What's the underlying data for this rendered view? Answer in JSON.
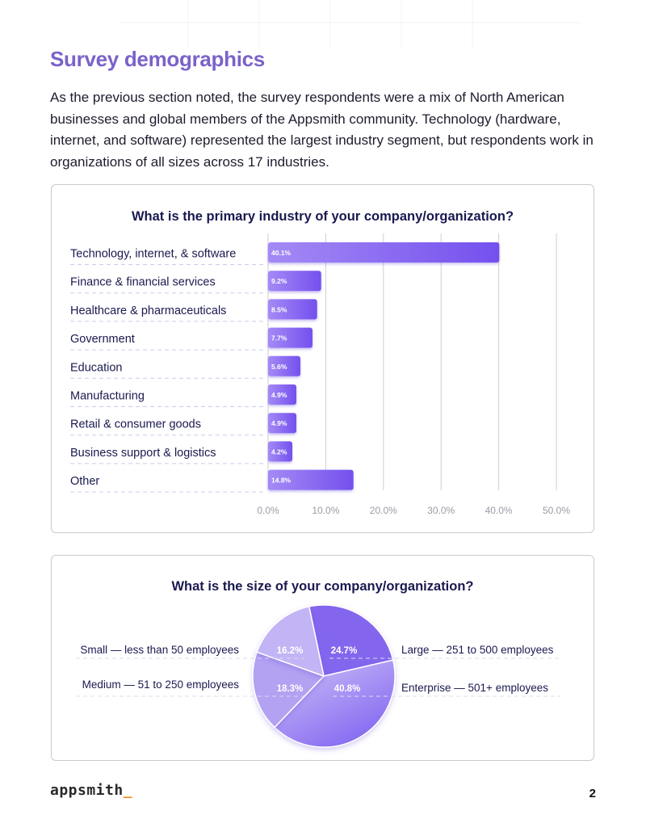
{
  "page": {
    "title": "Survey demographics",
    "intro": "As the previous section noted, the survey respondents were a mix of North American businesses and global members of the Appsmith community. Technology (hardware, internet, and software) represented the largest industry segment, but respondents work in organizations of all sizes across 17 industries.",
    "footer_logo": "appsmith",
    "footer_cursor": "_",
    "page_number": "2"
  },
  "colors": {
    "title": "#7b62c9",
    "bar_start": "#a48af5",
    "bar_end": "#7450ee",
    "pie_large": "#8466ee",
    "pie_small": "#c3b4f5",
    "pie_medium": "#b3a1f2",
    "pie_enterprise_start": "#c9bcf7",
    "pie_enterprise_end": "#7d5ef0",
    "logo_cursor": "#f28a1e"
  },
  "chart_data": [
    {
      "type": "bar",
      "orientation": "horizontal",
      "title": "What is the primary industry of your company/organization?",
      "categories": [
        "Technology, internet, & software",
        "Finance & financial services",
        "Healthcare & pharmaceuticals",
        "Government",
        "Education",
        "Manufacturing",
        "Retail & consumer goods",
        "Business support & logistics",
        "Other"
      ],
      "values": [
        40.1,
        9.2,
        8.5,
        7.7,
        5.6,
        4.9,
        4.9,
        4.2,
        14.8
      ],
      "value_labels": [
        "40.1%",
        "9.2%",
        "8.5%",
        "7.7%",
        "5.6%",
        "4.9%",
        "4.9%",
        "4.2%",
        "14.8%"
      ],
      "xlim": [
        0,
        50
      ],
      "xticks": [
        "0.0%",
        "10.0%",
        "20.0%",
        "30.0%",
        "40.0%",
        "50.0%"
      ],
      "grid": true
    },
    {
      "type": "pie",
      "title": "What is the size of your company/organization?",
      "slices": [
        {
          "label": "Large — 251 to 500 employees",
          "value": 24.7,
          "value_label": "24.7%"
        },
        {
          "label": "Enterprise — 501+ employees",
          "value": 40.8,
          "value_label": "40.8%"
        },
        {
          "label": "Medium — 51 to 250 employees",
          "value": 18.3,
          "value_label": "18.3%"
        },
        {
          "label": "Small — less than 50 employees",
          "value": 16.2,
          "value_label": "16.2%"
        }
      ]
    }
  ]
}
